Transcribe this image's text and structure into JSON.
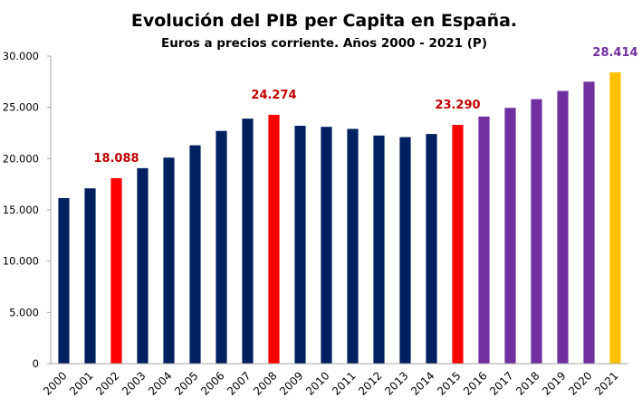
{
  "chart_data": {
    "type": "bar",
    "title": "Evolución del PIB per Capita en España.",
    "subtitle": "Euros a precios corriente.  Años 2000 - 2021 (P)",
    "xlabel": "",
    "ylabel": "",
    "ylim": [
      0,
      30000
    ],
    "yticks": [
      0,
      5000,
      10000,
      15000,
      20000,
      25000,
      30000
    ],
    "ytick_labels": [
      "0",
      "5.000",
      "10.000",
      "15.000",
      "20.000",
      "25.000",
      "30.000"
    ],
    "grid": false,
    "legend": "none",
    "categories": [
      "2000",
      "2001",
      "2002",
      "2003",
      "2004",
      "2005",
      "2006",
      "2007",
      "2008",
      "2009",
      "2010",
      "2011",
      "2012",
      "2013",
      "2014",
      "2015",
      "2016",
      "2017",
      "2018",
      "2019",
      "2020",
      "2021"
    ],
    "values": [
      16150,
      17100,
      18088,
      19070,
      20100,
      21300,
      22700,
      23900,
      24274,
      23200,
      23100,
      22900,
      22250,
      22100,
      22400,
      23290,
      24100,
      24950,
      25800,
      26600,
      27500,
      28414
    ],
    "bar_colors": [
      "#002060",
      "#002060",
      "#FF0000",
      "#002060",
      "#002060",
      "#002060",
      "#002060",
      "#002060",
      "#FF0000",
      "#002060",
      "#002060",
      "#002060",
      "#002060",
      "#002060",
      "#002060",
      "#FF0000",
      "#7030A0",
      "#7030A0",
      "#7030A0",
      "#7030A0",
      "#7030A0",
      "#FFC000"
    ],
    "annotations": [
      {
        "category": "2002",
        "text": "18.088",
        "color": "#C00000"
      },
      {
        "category": "2008",
        "text": "24.274",
        "color": "#C00000"
      },
      {
        "category": "2015",
        "text": "23.290",
        "color": "#C00000"
      },
      {
        "category": "2021",
        "text": "28.414",
        "color": "#7030A0"
      }
    ]
  }
}
